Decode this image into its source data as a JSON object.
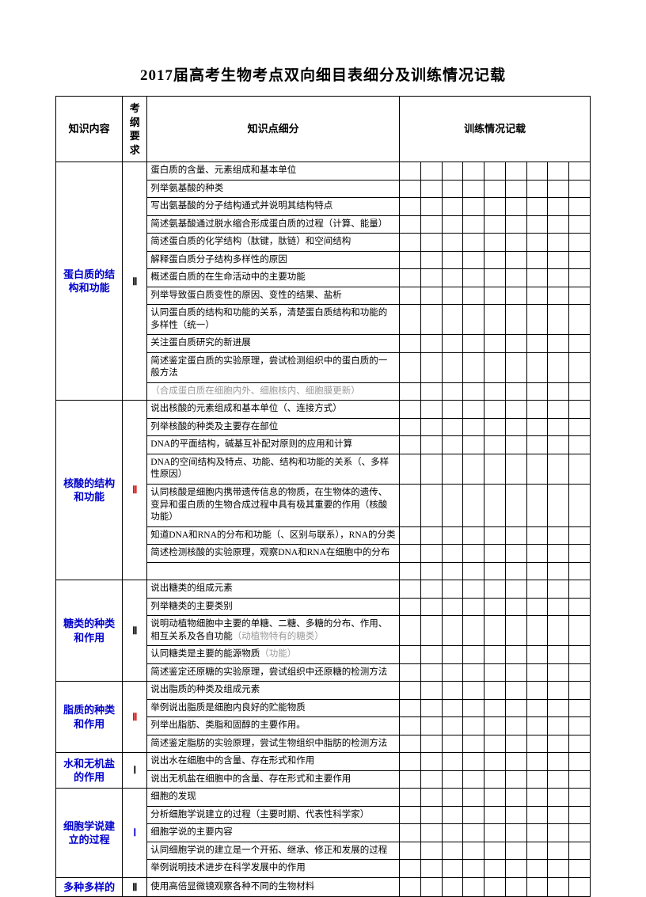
{
  "title": "2017届高考生物考点双向细目表细分及训练情况记载",
  "headers": {
    "topic": "知识内容",
    "req": "考纲要求",
    "detail": "知识点细分",
    "record": "训练情况记载"
  },
  "record_cols": 9,
  "sections": [
    {
      "topic": "蛋白质的结构和功能",
      "req": "Ⅱ",
      "req_color": "black",
      "rows": [
        {
          "text": "蛋白质的含量、元素组成和基本单位"
        },
        {
          "text": "列举氨基酸的种类"
        },
        {
          "text": "写出氨基酸的分子结构通式并说明其结构特点"
        },
        {
          "text": "简述氨基酸通过脱水缩合形成蛋白质的过程（计算、能量）"
        },
        {
          "text": "简述蛋白质的化学结构（肽键，肽链）和空间结构"
        },
        {
          "text": "解释蛋白质分子结构多样性的原因"
        },
        {
          "text": "概述蛋白质的在生命活动中的主要功能"
        },
        {
          "text": "列举导致蛋白质变性的原因、变性的结果、盐析"
        },
        {
          "text": "认同蛋白质的结构和功能的关系，清楚蛋白质结构和功能的多样性（统一）"
        },
        {
          "text": "关注蛋白质研究的新进展"
        },
        {
          "text": "简述鉴定蛋白质的实验原理，尝试检测组织中的蛋白质的一般方法"
        },
        {
          "text": "（合成蛋白质在细胞内外、细胞核内、细胞膜更新）",
          "gray": true
        }
      ]
    },
    {
      "topic": "核酸的结构和功能",
      "req": "Ⅱ",
      "req_color": "red",
      "rows": [
        {
          "text": "说出核酸的元素组成和基本单位（、连接方式）"
        },
        {
          "text": "列举核酸的种类及主要存在部位"
        },
        {
          "text": "DNA的平面结构，碱基互补配对原则的应用和计算"
        },
        {
          "text": "DNA的空间结构及特点、功能、结构和功能的关系（、多样性原因）"
        },
        {
          "text": "认同核酸是细胞内携带遗传信息的物质，在生物体的遗传、变异和蛋白质的生物合成过程中具有极其重要的作用（核酸功能）"
        },
        {
          "text": "知道DNA和RNA的分布和功能（、区别与联系），RNA的分类"
        },
        {
          "text": "简述检测核酸的实验原理，观察DNA和RNA在细胞中的分布"
        }
      ],
      "trailing_blank": true
    },
    {
      "topic": "糖类的种类和作用",
      "req": "Ⅱ",
      "req_color": "black",
      "rows": [
        {
          "text": "说出糖类的组成元素"
        },
        {
          "text": "列举糖类的主要类别"
        },
        {
          "text_html": "说明动植物细胞中主要的单糖、二糖、多糖的分布、作用、相互关系及各自功能<span class=\"gray-inline\">（动植物特有的糖类）</span>"
        },
        {
          "text_html": "认同糖类是主要的能源物质<span class=\"gray-inline\">（功能）</span>"
        },
        {
          "text": "简述鉴定还原糖的实验原理，尝试组织中还原糖的检测方法"
        }
      ]
    },
    {
      "topic": "脂质的种类和作用",
      "req": "Ⅱ",
      "req_color": "red",
      "rows": [
        {
          "text": "说出脂质的种类及组成元素"
        },
        {
          "text": "举例说出脂质是细胞内良好的贮能物质"
        },
        {
          "text": "列举出脂肪、类脂和固醇的主要作用。"
        },
        {
          "text": "简述鉴定脂肪的实验原理，尝试生物组织中脂肪的检测方法"
        }
      ]
    },
    {
      "topic": "水和无机盐的作用",
      "req": "Ⅰ",
      "req_color": "black",
      "rows": [
        {
          "text": "说出水在细胞中的含量、存在形式和作用"
        },
        {
          "text": "说出无机盐在细胞中的含量、存在形式和主要作用"
        }
      ]
    },
    {
      "topic": "细胞学说建立的过程",
      "req": "Ⅰ",
      "req_color": "blue",
      "rows": [
        {
          "text": "细胞的发现"
        },
        {
          "text": "分析细胞学说建立的过程（主要时期、代表性科学家）"
        },
        {
          "text": "细胞学说的主要内容"
        },
        {
          "text": "认同细胞学说的建立是一个开拓、继承、修正和发展的过程"
        },
        {
          "text": "举例说明技术进步在科学发展中的作用"
        }
      ]
    },
    {
      "topic": "多种多样的",
      "req": "Ⅱ",
      "req_color": "black",
      "rows": [
        {
          "text": "使用高倍显微镜观察各种不同的生物材料"
        }
      ]
    }
  ]
}
